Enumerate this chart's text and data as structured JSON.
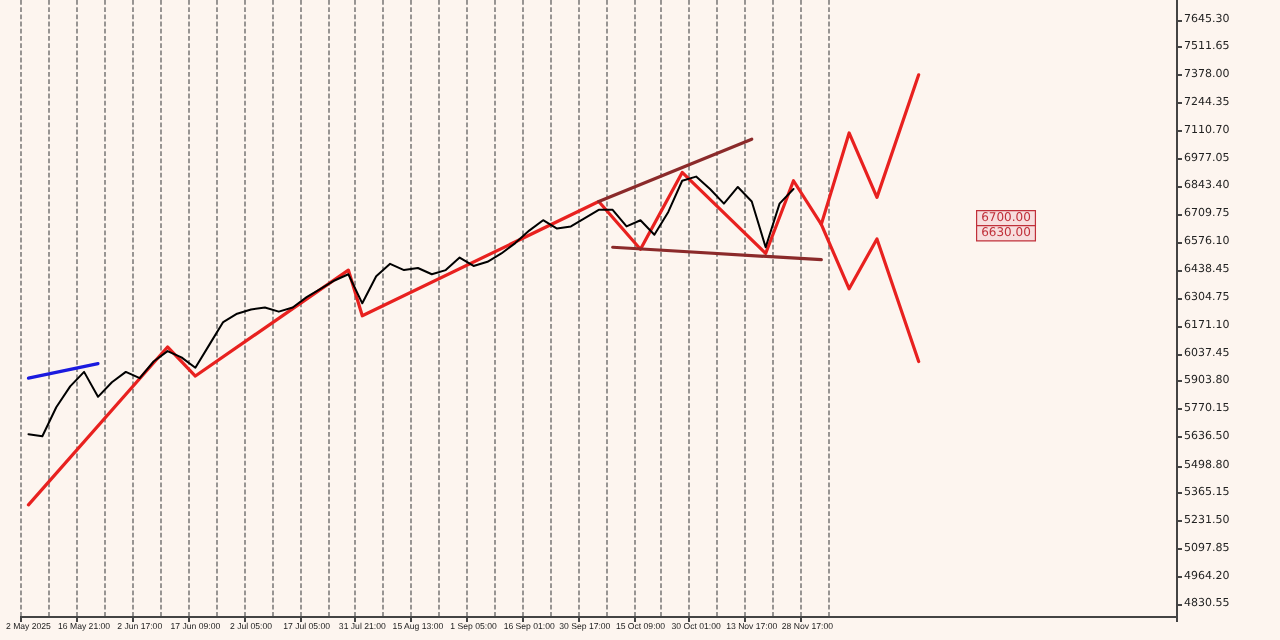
{
  "chart_data": {
    "type": "line",
    "categories": [
      "2 May 2025",
      null,
      null,
      null,
      "16 May 21:00",
      null,
      null,
      null,
      "2 Jun 17:00",
      null,
      null,
      null,
      "17 Jun 09:00",
      null,
      null,
      null,
      "2 Jul 05:00",
      null,
      null,
      null,
      "17 Jul 05:00",
      null,
      null,
      null,
      "31 Jul 21:00",
      null,
      null,
      null,
      "15 Aug 13:00",
      null,
      null,
      null,
      "1 Sep 05:00",
      null,
      null,
      null,
      "16 Sep 01:00",
      null,
      null,
      null,
      "30 Sep 17:00",
      null,
      null,
      null,
      "15 Oct 09:00",
      null,
      null,
      null,
      "30 Oct 01:00",
      null,
      null,
      null,
      "13 Nov 17:00",
      null,
      null,
      null,
      "28 Nov 17:00",
      null,
      null,
      null,
      null,
      null,
      null,
      null,
      null,
      null,
      null,
      null,
      null,
      null,
      null,
      null,
      null,
      null,
      null,
      null,
      null,
      null,
      null,
      null,
      null,
      null,
      null
    ],
    "series": [
      {
        "color": "#000000",
        "values": [
          5650,
          5640,
          5780,
          5880,
          5950,
          5830,
          5900,
          5950,
          5920,
          6000,
          6050,
          6020,
          5970,
          6080,
          6190,
          6230,
          6250,
          6260,
          6240,
          6260,
          6310,
          6350,
          6390,
          6420,
          6280,
          6410,
          6470,
          6440,
          6450,
          6420,
          6440,
          6500,
          6460,
          6480,
          6520,
          6570,
          6630,
          6680,
          6640,
          6650,
          6690,
          6730,
          6730,
          6650,
          6680,
          6610,
          6720,
          6870,
          6890,
          6830,
          6760,
          6840,
          6770,
          6550,
          6760,
          6830,
          null,
          null,
          null,
          null,
          null,
          null,
          null,
          null,
          null,
          null,
          null,
          null,
          null,
          null,
          null,
          null,
          null,
          null,
          null,
          null,
          null,
          null,
          null,
          null,
          null,
          null,
          null
        ]
      },
      {
        "color": "#e8211f",
        "values": [
          5310,
          null,
          null,
          null,
          null,
          null,
          null,
          null,
          null,
          null,
          6070,
          null,
          5930,
          null,
          null,
          null,
          null,
          null,
          null,
          null,
          null,
          null,
          null,
          6440,
          6220,
          null,
          null,
          null,
          null,
          null,
          null,
          null,
          null,
          null,
          null,
          null,
          null,
          null,
          null,
          null,
          null,
          6770,
          null,
          null,
          6540,
          null,
          null,
          6910,
          null,
          null,
          null,
          null,
          null,
          6520,
          null,
          6870,
          null,
          6660,
          null,
          7100,
          null,
          6790,
          null,
          null,
          7380,
          null,
          null,
          null,
          null,
          null,
          null,
          null,
          null,
          null,
          null,
          null,
          null,
          null,
          null,
          null,
          null,
          null,
          null
        ]
      },
      {
        "color": "#e8211f",
        "values": [
          null,
          null,
          null,
          null,
          null,
          null,
          null,
          null,
          null,
          null,
          null,
          null,
          null,
          null,
          null,
          null,
          null,
          null,
          null,
          null,
          null,
          null,
          null,
          null,
          null,
          null,
          null,
          null,
          null,
          null,
          null,
          null,
          null,
          null,
          null,
          null,
          null,
          null,
          null,
          null,
          null,
          null,
          null,
          null,
          null,
          null,
          null,
          null,
          null,
          null,
          null,
          null,
          null,
          null,
          null,
          null,
          null,
          6660,
          null,
          6350,
          null,
          6590,
          null,
          null,
          6000,
          null,
          null,
          null,
          null,
          null,
          null,
          null,
          null,
          null,
          null,
          null,
          null,
          null,
          null,
          null,
          null,
          null,
          null
        ]
      },
      {
        "color": "#8b2a2a",
        "values": [
          null,
          null,
          null,
          null,
          null,
          null,
          null,
          null,
          null,
          null,
          null,
          null,
          null,
          null,
          null,
          null,
          null,
          null,
          null,
          null,
          null,
          null,
          null,
          null,
          null,
          null,
          null,
          null,
          null,
          null,
          null,
          null,
          null,
          null,
          null,
          null,
          null,
          null,
          null,
          null,
          null,
          6770,
          null,
          null,
          null,
          null,
          null,
          null,
          null,
          null,
          null,
          null,
          7070,
          null,
          null,
          null,
          null,
          null,
          null,
          null,
          null,
          null,
          null,
          null,
          null,
          null,
          null,
          null,
          null,
          null,
          null,
          null,
          null,
          null,
          null,
          null,
          null,
          null,
          null,
          null,
          null,
          null,
          null
        ]
      },
      {
        "color": "#8b2a2a",
        "values": [
          null,
          null,
          null,
          null,
          null,
          null,
          null,
          null,
          null,
          null,
          null,
          null,
          null,
          null,
          null,
          null,
          null,
          null,
          null,
          null,
          null,
          null,
          null,
          null,
          null,
          null,
          null,
          null,
          null,
          null,
          null,
          null,
          null,
          null,
          null,
          null,
          null,
          null,
          null,
          null,
          null,
          null,
          6550,
          null,
          null,
          null,
          null,
          null,
          null,
          null,
          null,
          null,
          null,
          null,
          null,
          null,
          null,
          6490,
          null,
          null,
          null,
          null,
          null,
          null,
          null,
          null,
          null,
          null,
          null,
          null,
          null,
          null,
          null,
          null,
          null,
          null,
          null,
          null,
          null,
          null,
          null,
          null,
          null
        ]
      },
      {
        "color": "#1a1adf",
        "values": [
          5920,
          null,
          null,
          null,
          null,
          5990,
          null,
          null,
          null,
          null,
          null,
          null,
          null,
          null,
          null,
          null,
          null,
          null,
          null,
          null,
          null,
          null,
          null,
          null,
          null,
          null,
          null,
          null,
          null,
          null,
          null,
          null,
          null,
          null,
          null,
          null,
          null,
          null,
          null,
          null,
          null,
          null,
          null,
          null,
          null,
          null,
          null,
          null,
          null,
          null,
          null,
          null,
          null,
          null,
          null,
          null,
          null,
          null,
          null,
          null,
          null,
          null,
          null,
          null,
          null,
          null,
          null,
          null,
          null,
          null,
          null,
          null,
          null,
          null,
          null,
          null,
          null,
          null,
          null,
          null,
          null,
          null,
          null
        ]
      }
    ],
    "ylim": [
      4775,
      7740
    ],
    "yticks": [
      {
        "value": 7645.3,
        "label": "7645.30"
      },
      7511.65,
      {
        "value": 7378,
        "label": "7378.00"
      },
      7244.35,
      {
        "value": 7110.7,
        "label": "7110.70"
      },
      6977.05,
      {
        "value": 6843.4,
        "label": "6843.40"
      },
      6709.75,
      {
        "value": 6576.1,
        "label": "6576.10"
      },
      6438.45,
      6304.75,
      {
        "value": 6171.1,
        "label": "6171.10"
      },
      6037.45,
      {
        "value": 5903.8,
        "label": "5903.80"
      },
      5770.15,
      {
        "value": 5636.5,
        "label": "5636.50"
      },
      {
        "value": 5498.8,
        "label": "5498.80"
      },
      5365.15,
      {
        "value": 5231.5,
        "label": "5231.50"
      },
      5097.85,
      {
        "value": 4964.2,
        "label": "4964.20"
      },
      4830.55
    ],
    "annotations": [
      "6700.00",
      "6630.00"
    ],
    "grid": "x",
    "marker": "none",
    "line_style": "solid"
  }
}
